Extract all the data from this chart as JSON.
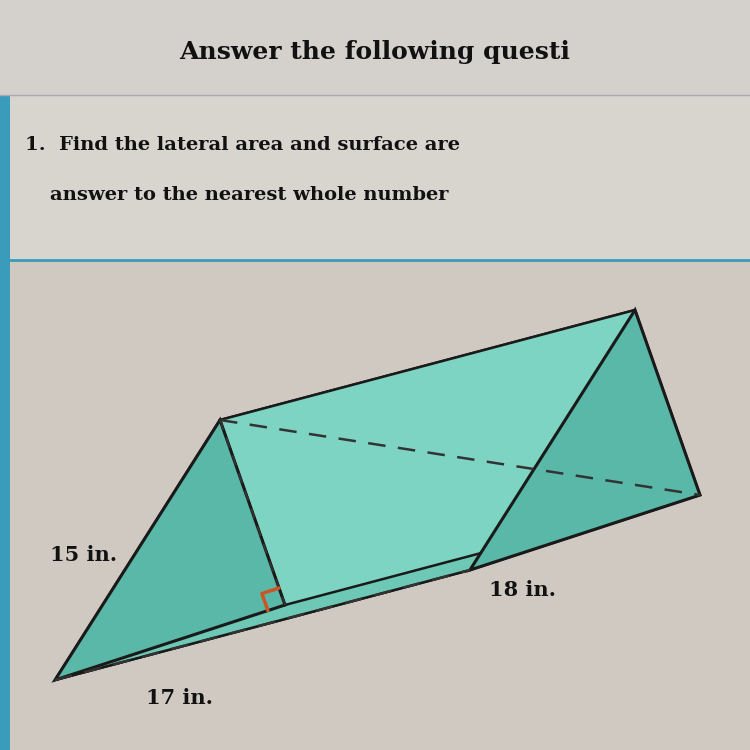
{
  "title_text": "Answer the following questi",
  "dim_15": "15 in.",
  "dim_17": "17 in.",
  "dim_18": "18 in.",
  "bg_top_header": "#d4d0cc",
  "bg_question": "#d8d4ce",
  "bg_prism_area": "#cfc9c2",
  "prism_fill_top_slant": "#6dc8b5",
  "prism_fill_left_slant": "#7dd4c2",
  "prism_fill_bottom": "#7dd4c0",
  "prism_fill_right_tri": "#5ab8a8",
  "prism_fill_left_tri": "#5ab8a8",
  "outline_color": "#1a1a1a",
  "dashed_color": "#333333",
  "right_angle_color": "#cc5522",
  "border_color": "#3a9bbb",
  "text_color": "#111111"
}
